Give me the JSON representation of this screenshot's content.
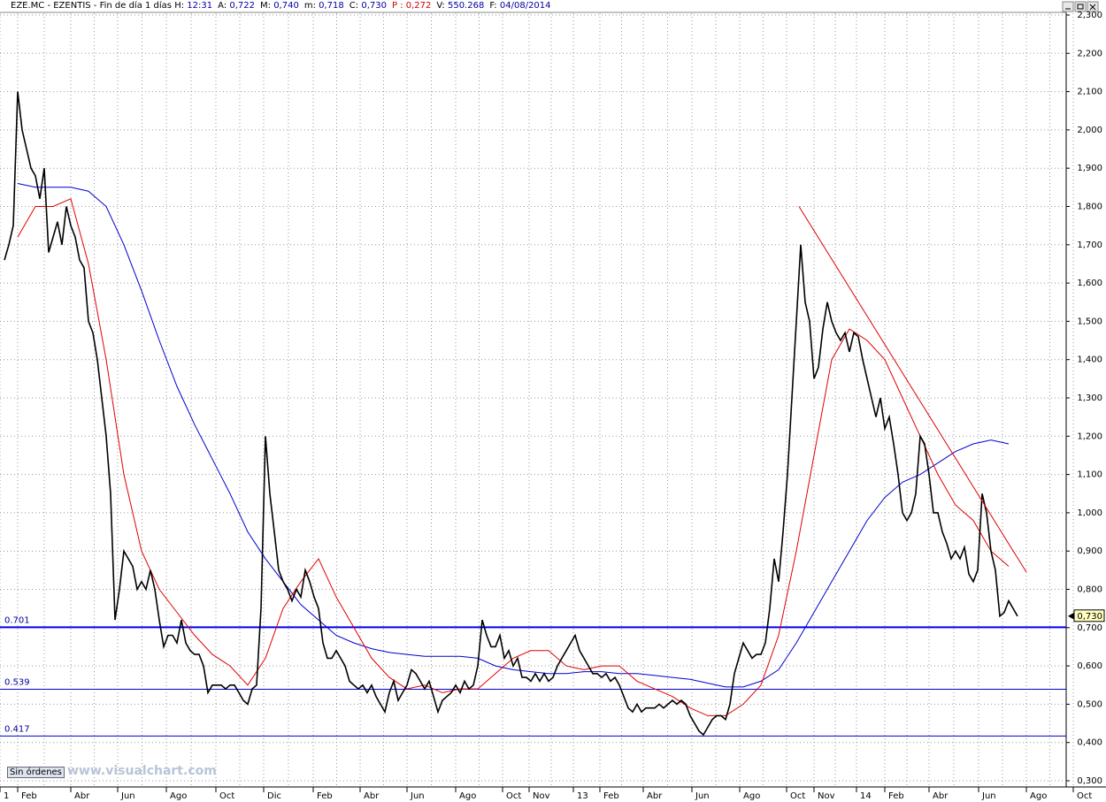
{
  "header": {
    "symbol": "EZE.MC - EZENTIS - Fin de día 1 días",
    "fields": [
      {
        "label": "H:",
        "value": "12:31"
      },
      {
        "label": "A:",
        "value": "0,722"
      },
      {
        "label": "M:",
        "value": "0,740"
      },
      {
        "label": "m:",
        "value": "0,718"
      },
      {
        "label": "C:",
        "value": "0,730"
      },
      {
        "label": "P :",
        "value": "0,272"
      },
      {
        "label": "V:",
        "value": "550.268"
      },
      {
        "label": "F:",
        "value": "04/08/2014"
      }
    ]
  },
  "chart_data": {
    "type": "line",
    "ylim": [
      0.3,
      2.3
    ],
    "yticks": [
      {
        "value": 0.3,
        "label": "0,300"
      },
      {
        "value": 0.4,
        "label": "0,400"
      },
      {
        "value": 0.5,
        "label": "0,500"
      },
      {
        "value": 0.6,
        "label": "0,600"
      },
      {
        "value": 0.7,
        "label": "0,700"
      },
      {
        "value": 0.8,
        "label": "0,800"
      },
      {
        "value": 0.9,
        "label": "0,900"
      },
      {
        "value": 1.0,
        "label": "1,000"
      },
      {
        "value": 1.1,
        "label": "1,100"
      },
      {
        "value": 1.2,
        "label": "1,200"
      },
      {
        "value": 1.3,
        "label": "1,300"
      },
      {
        "value": 1.4,
        "label": "1,400"
      },
      {
        "value": 1.5,
        "label": "1,500"
      },
      {
        "value": 1.6,
        "label": "1,600"
      },
      {
        "value": 1.7,
        "label": "1,700"
      },
      {
        "value": 1.8,
        "label": "1,800"
      },
      {
        "value": 1.9,
        "label": "1,900"
      },
      {
        "value": 2.0,
        "label": "2,000"
      },
      {
        "value": 2.1,
        "label": "2,100"
      },
      {
        "value": 2.2,
        "label": "2,200"
      },
      {
        "value": 2.3,
        "label": "2,300"
      }
    ],
    "x_axis_labels": [
      "1",
      "Feb",
      "Abr",
      "Jun",
      "Ago",
      "Oct",
      "Dic",
      "Feb",
      "Abr",
      "Jun",
      "Ago",
      "Oct",
      "Nov",
      "13",
      "Feb",
      "Abr",
      "Jun",
      "Ago",
      "Oct",
      "Nov",
      "14",
      "Feb",
      "Abr",
      "Jun",
      "Ago",
      "Oct"
    ],
    "grid": true,
    "series": [
      {
        "color": "#000000",
        "values": [
          1.66,
          1.7,
          1.75,
          2.1,
          2.0,
          1.95,
          1.9,
          1.88,
          1.82,
          1.9,
          1.68,
          1.72,
          1.76,
          1.7,
          1.8,
          1.75,
          1.72,
          1.66,
          1.64,
          1.5,
          1.47,
          1.4,
          1.3,
          1.2,
          1.05,
          0.72,
          0.8,
          0.9,
          0.88,
          0.86,
          0.8,
          0.82,
          0.8,
          0.85,
          0.8,
          0.72,
          0.65,
          0.68,
          0.68,
          0.66,
          0.72,
          0.66,
          0.64,
          0.63,
          0.63,
          0.6,
          0.53,
          0.55,
          0.55,
          0.55,
          0.54,
          0.55,
          0.55,
          0.53,
          0.51,
          0.5,
          0.54,
          0.55,
          0.75,
          1.2,
          1.05,
          0.95,
          0.85,
          0.82,
          0.8,
          0.77,
          0.8,
          0.78,
          0.85,
          0.82,
          0.78,
          0.75,
          0.66,
          0.62,
          0.62,
          0.64,
          0.62,
          0.6,
          0.56,
          0.55,
          0.54,
          0.55,
          0.53,
          0.55,
          0.52,
          0.5,
          0.48,
          0.53,
          0.56,
          0.51,
          0.53,
          0.55,
          0.59,
          0.58,
          0.56,
          0.54,
          0.56,
          0.52,
          0.48,
          0.51,
          0.52,
          0.53,
          0.55,
          0.53,
          0.56,
          0.54,
          0.55,
          0.6,
          0.72,
          0.68,
          0.65,
          0.65,
          0.68,
          0.62,
          0.64,
          0.6,
          0.62,
          0.57,
          0.57,
          0.56,
          0.58,
          0.56,
          0.58,
          0.56,
          0.57,
          0.6,
          0.62,
          0.64,
          0.66,
          0.68,
          0.64,
          0.62,
          0.6,
          0.58,
          0.58,
          0.57,
          0.58,
          0.56,
          0.57,
          0.55,
          0.52,
          0.49,
          0.48,
          0.5,
          0.48,
          0.49,
          0.49,
          0.49,
          0.5,
          0.49,
          0.5,
          0.51,
          0.5,
          0.51,
          0.5,
          0.47,
          0.45,
          0.43,
          0.42,
          0.44,
          0.46,
          0.47,
          0.47,
          0.46,
          0.5,
          0.58,
          0.62,
          0.66,
          0.64,
          0.62,
          0.63,
          0.63,
          0.66,
          0.75,
          0.88,
          0.82,
          0.95,
          1.1,
          1.3,
          1.5,
          1.7,
          1.55,
          1.5,
          1.35,
          1.38,
          1.48,
          1.55,
          1.5,
          1.47,
          1.45,
          1.47,
          1.42,
          1.47,
          1.46,
          1.4,
          1.35,
          1.3,
          1.25,
          1.3,
          1.22,
          1.25,
          1.18,
          1.1,
          1.0,
          0.98,
          1.0,
          1.05,
          1.2,
          1.18,
          1.1,
          1.0,
          1.0,
          0.95,
          0.92,
          0.88,
          0.9,
          0.88,
          0.91,
          0.84,
          0.82,
          0.85,
          1.05,
          1.0,
          0.9,
          0.85,
          0.73,
          0.74,
          0.77,
          0.75,
          0.73
        ]
      },
      {
        "color": "#e00000",
        "values": [
          1.72,
          1.8,
          1.8,
          1.82,
          1.65,
          1.4,
          1.1,
          0.9,
          0.8,
          0.74,
          0.68,
          0.63,
          0.6,
          0.55,
          0.62,
          0.75,
          0.82,
          0.88,
          0.78,
          0.7,
          0.62,
          0.57,
          0.54,
          0.55,
          0.53,
          0.54,
          0.54,
          0.58,
          0.62,
          0.64,
          0.64,
          0.6,
          0.59,
          0.6,
          0.6,
          0.56,
          0.54,
          0.52,
          0.49,
          0.47,
          0.47,
          0.5,
          0.55,
          0.68,
          0.9,
          1.15,
          1.4,
          1.48,
          1.45,
          1.4,
          1.3,
          1.2,
          1.1,
          1.02,
          0.98,
          0.9,
          0.86
        ]
      },
      {
        "color": "#0000cc",
        "values": [
          1.86,
          1.85,
          1.85,
          1.85,
          1.84,
          1.8,
          1.7,
          1.58,
          1.45,
          1.33,
          1.23,
          1.14,
          1.05,
          0.95,
          0.88,
          0.82,
          0.76,
          0.72,
          0.68,
          0.66,
          0.645,
          0.635,
          0.63,
          0.625,
          0.625,
          0.625,
          0.62,
          0.6,
          0.59,
          0.585,
          0.58,
          0.58,
          0.585,
          0.585,
          0.58,
          0.58,
          0.575,
          0.57,
          0.565,
          0.555,
          0.545,
          0.545,
          0.56,
          0.59,
          0.66,
          0.74,
          0.82,
          0.9,
          0.98,
          1.04,
          1.08,
          1.1,
          1.13,
          1.16,
          1.18,
          1.19,
          1.18
        ]
      }
    ],
    "trendline": {
      "color": "#e00000",
      "values": [
        1.8,
        0.845
      ]
    },
    "levels": [
      {
        "value": 0.701,
        "color": "#0000ee"
      },
      {
        "value": 0.539,
        "color": "#0000cc"
      },
      {
        "value": 0.417,
        "color": "#0000cc"
      }
    ],
    "last_price": {
      "value": 0.73,
      "label": "0,730"
    }
  },
  "footer": {
    "button": "Sin órdenes",
    "watermark": "www.visualchart.com"
  }
}
